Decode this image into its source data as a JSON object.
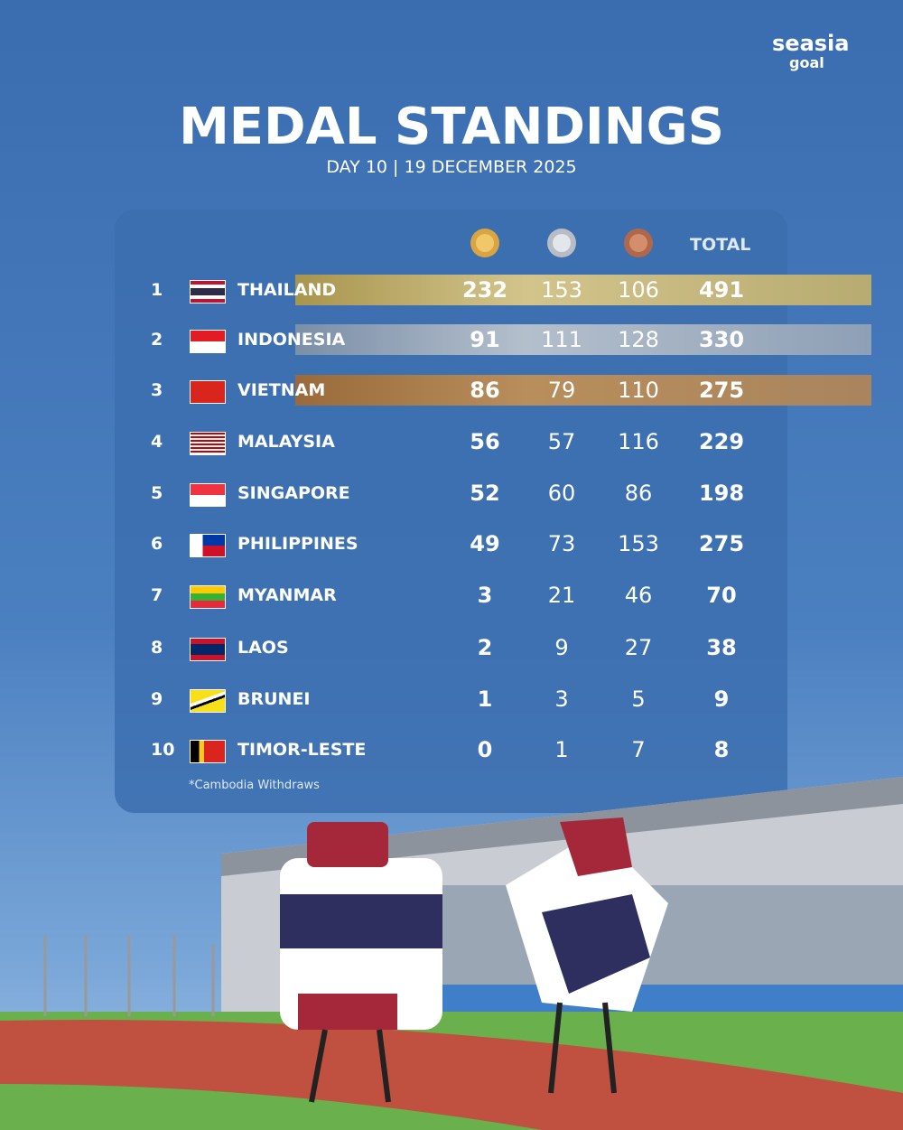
{
  "logo": {
    "brand": "seasia",
    "sub": "goal"
  },
  "header": {
    "title": "MEDAL STANDINGS",
    "subtitle": "DAY 10 | 19 DECEMBER 2025"
  },
  "table": {
    "total_header": "TOTAL",
    "rows": [
      [
        1,
        "THAILAND",
        232,
        153,
        106,
        491
      ],
      [
        2,
        "INDONESIA",
        91,
        111,
        128,
        330
      ],
      [
        3,
        "VIETNAM",
        86,
        79,
        110,
        275
      ],
      [
        4,
        "MALAYSIA",
        56,
        57,
        116,
        229
      ],
      [
        5,
        "SINGAPORE",
        52,
        60,
        86,
        198
      ],
      [
        6,
        "PHILIPPINES",
        49,
        73,
        153,
        275
      ],
      [
        7,
        "MYANMAR",
        3,
        21,
        46,
        70
      ],
      [
        8,
        "LAOS",
        2,
        9,
        27,
        38
      ],
      [
        9,
        "BRUNEI",
        1,
        3,
        5,
        9
      ],
      [
        10,
        "TIMOR-LESTE",
        0,
        1,
        7,
        8
      ]
    ],
    "footnote": "*Cambodia Withdraws"
  }
}
